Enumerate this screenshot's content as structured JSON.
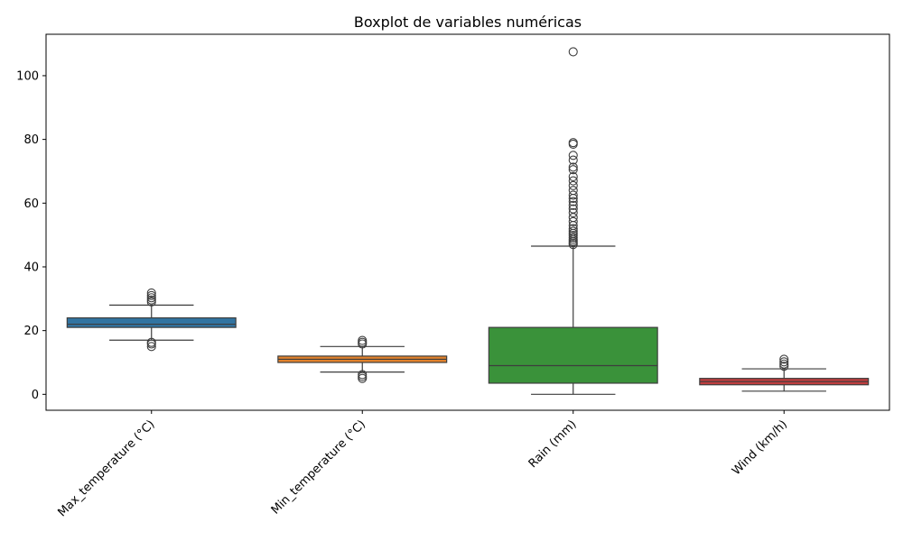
{
  "chart_data": {
    "type": "boxplot",
    "title": "Boxplot de variables numéricas",
    "xlabel": "",
    "ylabel": "",
    "ylim": [
      -5,
      113
    ],
    "yticks": [
      0,
      20,
      40,
      60,
      80,
      100
    ],
    "grid": false,
    "categories": [
      "Max_temperature (°C)",
      "Min_temperature (°C)",
      "Rain (mm)",
      "Wind (km/h)"
    ],
    "boxes": [
      {
        "name": "Max_temperature (°C)",
        "color": "#3274a1",
        "whislo": 17,
        "q1": 21,
        "med": 22,
        "q3": 24,
        "whishi": 28,
        "fliers": [
          15,
          15.8,
          16.3,
          29,
          29.6,
          30.3,
          31,
          31.8
        ]
      },
      {
        "name": "Min_temperature (°C)",
        "color": "#e1812c",
        "whislo": 7,
        "q1": 10,
        "med": 11,
        "q3": 12,
        "whishi": 15,
        "fliers": [
          5,
          5.6,
          6.2,
          15.8,
          16.3,
          16.9
        ]
      },
      {
        "name": "Rain (mm)",
        "color": "#3a923a",
        "whislo": 0,
        "q1": 3.5,
        "med": 9,
        "q3": 21,
        "whishi": 46.5,
        "fliers": [
          47,
          47.5,
          48,
          48.6,
          49.2,
          49.9,
          50.5,
          51.2,
          52,
          53,
          54.2,
          55.5,
          57,
          58.2,
          59.3,
          60.5,
          61.5,
          62.5,
          64,
          65.5,
          67,
          68.3,
          70.5,
          71.3,
          73.5,
          75,
          78.5,
          79,
          107.5
        ]
      },
      {
        "name": "Wind (km/h)",
        "color": "#c03d3e",
        "whislo": 1,
        "q1": 3,
        "med": 4,
        "q3": 5,
        "whishi": 8,
        "fliers": [
          8.8,
          9.5,
          10.2,
          11
        ]
      }
    ]
  }
}
